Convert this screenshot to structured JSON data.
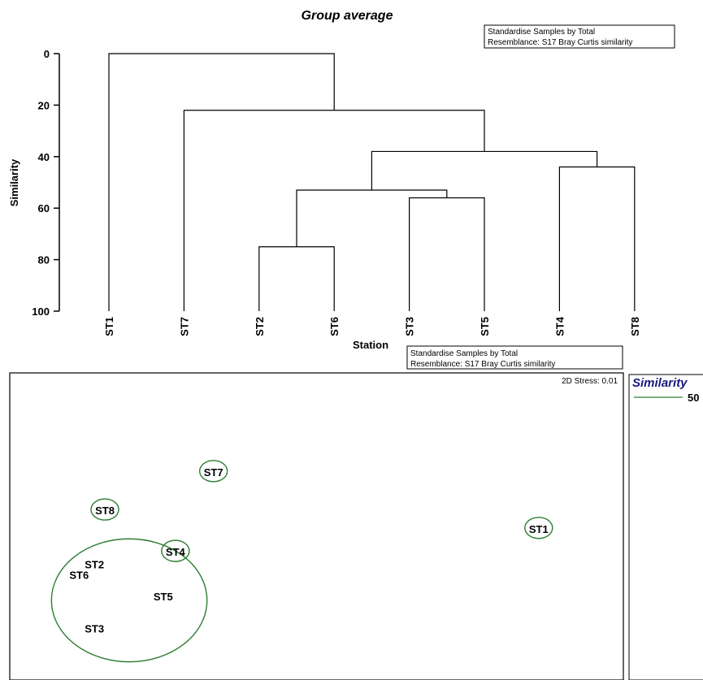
{
  "colors": {
    "title": "#1a1a80",
    "ink": "#000000",
    "contour": "#2e7d32",
    "legend_title": "#1a1a80"
  },
  "dendrogram": {
    "title": "Group average",
    "note_lines": [
      "Standardise Samples by Total",
      "Resemblance: S17 Bray Curtis similarity"
    ]
  },
  "mds": {
    "note_lines": [
      "Standardise Samples by Total",
      "Resemblance: S17 Bray Curtis similarity"
    ],
    "stress_label": "2D Stress: 0.01",
    "legend_title": "Similarity",
    "legend_value": "50"
  },
  "chart_data": [
    {
      "type": "dendrogram",
      "title": "Group average",
      "ylabel": "Similarity",
      "xlabel": "Station",
      "ylim": [
        0,
        100
      ],
      "yticks": [
        0,
        20,
        40,
        60,
        80,
        100
      ],
      "leaves": [
        "ST1",
        "ST7",
        "ST2",
        "ST6",
        "ST3",
        "ST5",
        "ST4",
        "ST8"
      ],
      "merges": [
        {
          "a": "ST2",
          "b": "ST6",
          "similarity": 75
        },
        {
          "a": "ST3",
          "b": "ST5",
          "similarity": 56
        },
        {
          "a": "ST4",
          "b": "ST8",
          "similarity": 44
        },
        {
          "a": "ST2+ST6",
          "b": "ST3+ST5",
          "similarity": 53
        },
        {
          "a": "ST2+ST6+ST3+ST5",
          "b": "ST4+ST8",
          "similarity": 38
        },
        {
          "a": "ST7",
          "b": "ST2+ST6+ST3+ST5+ST4+ST8",
          "similarity": 22
        },
        {
          "a": "ST1",
          "b": "ST7+ST2+ST6+ST3+ST5+ST4+ST8",
          "similarity": 0
        }
      ]
    },
    {
      "type": "scatter",
      "subtype": "nMDS ordination",
      "stress": "0.01",
      "xlim": [
        0,
        100
      ],
      "ylim": [
        0,
        100
      ],
      "points": [
        {
          "label": "ST7",
          "x": 33.2,
          "y": 67.5
        },
        {
          "label": "ST8",
          "x": 15.5,
          "y": 55.0
        },
        {
          "label": "ST1",
          "x": 86.2,
          "y": 49.0
        },
        {
          "label": "ST4",
          "x": 27.0,
          "y": 41.5
        },
        {
          "label": "ST2",
          "x": 13.8,
          "y": 37.5
        },
        {
          "label": "ST6",
          "x": 11.3,
          "y": 34.0
        },
        {
          "label": "ST5",
          "x": 25.0,
          "y": 27.0
        },
        {
          "label": "ST3",
          "x": 13.8,
          "y": 16.5
        }
      ],
      "contours": [
        {
          "level": 50,
          "members": [
            "ST7"
          ]
        },
        {
          "level": 50,
          "members": [
            "ST8"
          ]
        },
        {
          "level": 50,
          "members": [
            "ST1"
          ]
        },
        {
          "level": 50,
          "members": [
            "ST4"
          ]
        },
        {
          "level": 50,
          "members": [
            "ST2",
            "ST6",
            "ST3",
            "ST5"
          ]
        }
      ]
    }
  ]
}
